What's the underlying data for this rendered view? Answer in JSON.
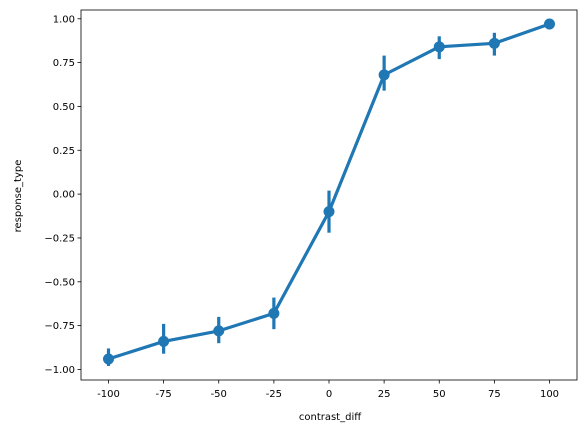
{
  "chart_data": {
    "type": "line",
    "title": "",
    "xlabel": "contrast_diff",
    "ylabel": "response_type",
    "categories": [
      "-100",
      "-75",
      "-50",
      "-25",
      "0",
      "25",
      "50",
      "75",
      "100"
    ],
    "x": [
      -100,
      -75,
      -50,
      -25,
      0,
      25,
      50,
      75,
      100
    ],
    "series": [
      {
        "values": [
          -0.94,
          -0.84,
          -0.78,
          -0.68,
          -0.1,
          0.68,
          0.84,
          0.86,
          0.97
        ],
        "ci_low": [
          -0.98,
          -0.91,
          -0.85,
          -0.77,
          -0.22,
          0.59,
          0.77,
          0.79,
          0.94
        ],
        "ci_high": [
          -0.88,
          -0.74,
          -0.7,
          -0.59,
          0.02,
          0.79,
          0.9,
          0.92,
          0.99
        ],
        "color": "#1f77b4"
      }
    ],
    "ylim": [
      -1.06,
      1.05
    ],
    "yticks": [
      -1.0,
      -0.75,
      -0.5,
      -0.25,
      0.0,
      0.25,
      0.5,
      0.75,
      1.0
    ],
    "ytick_labels": [
      "−1.00",
      "−0.75",
      "−0.50",
      "−0.25",
      "0.00",
      "0.25",
      "0.50",
      "0.75",
      "1.00"
    ],
    "grid": false,
    "legend": "none"
  }
}
